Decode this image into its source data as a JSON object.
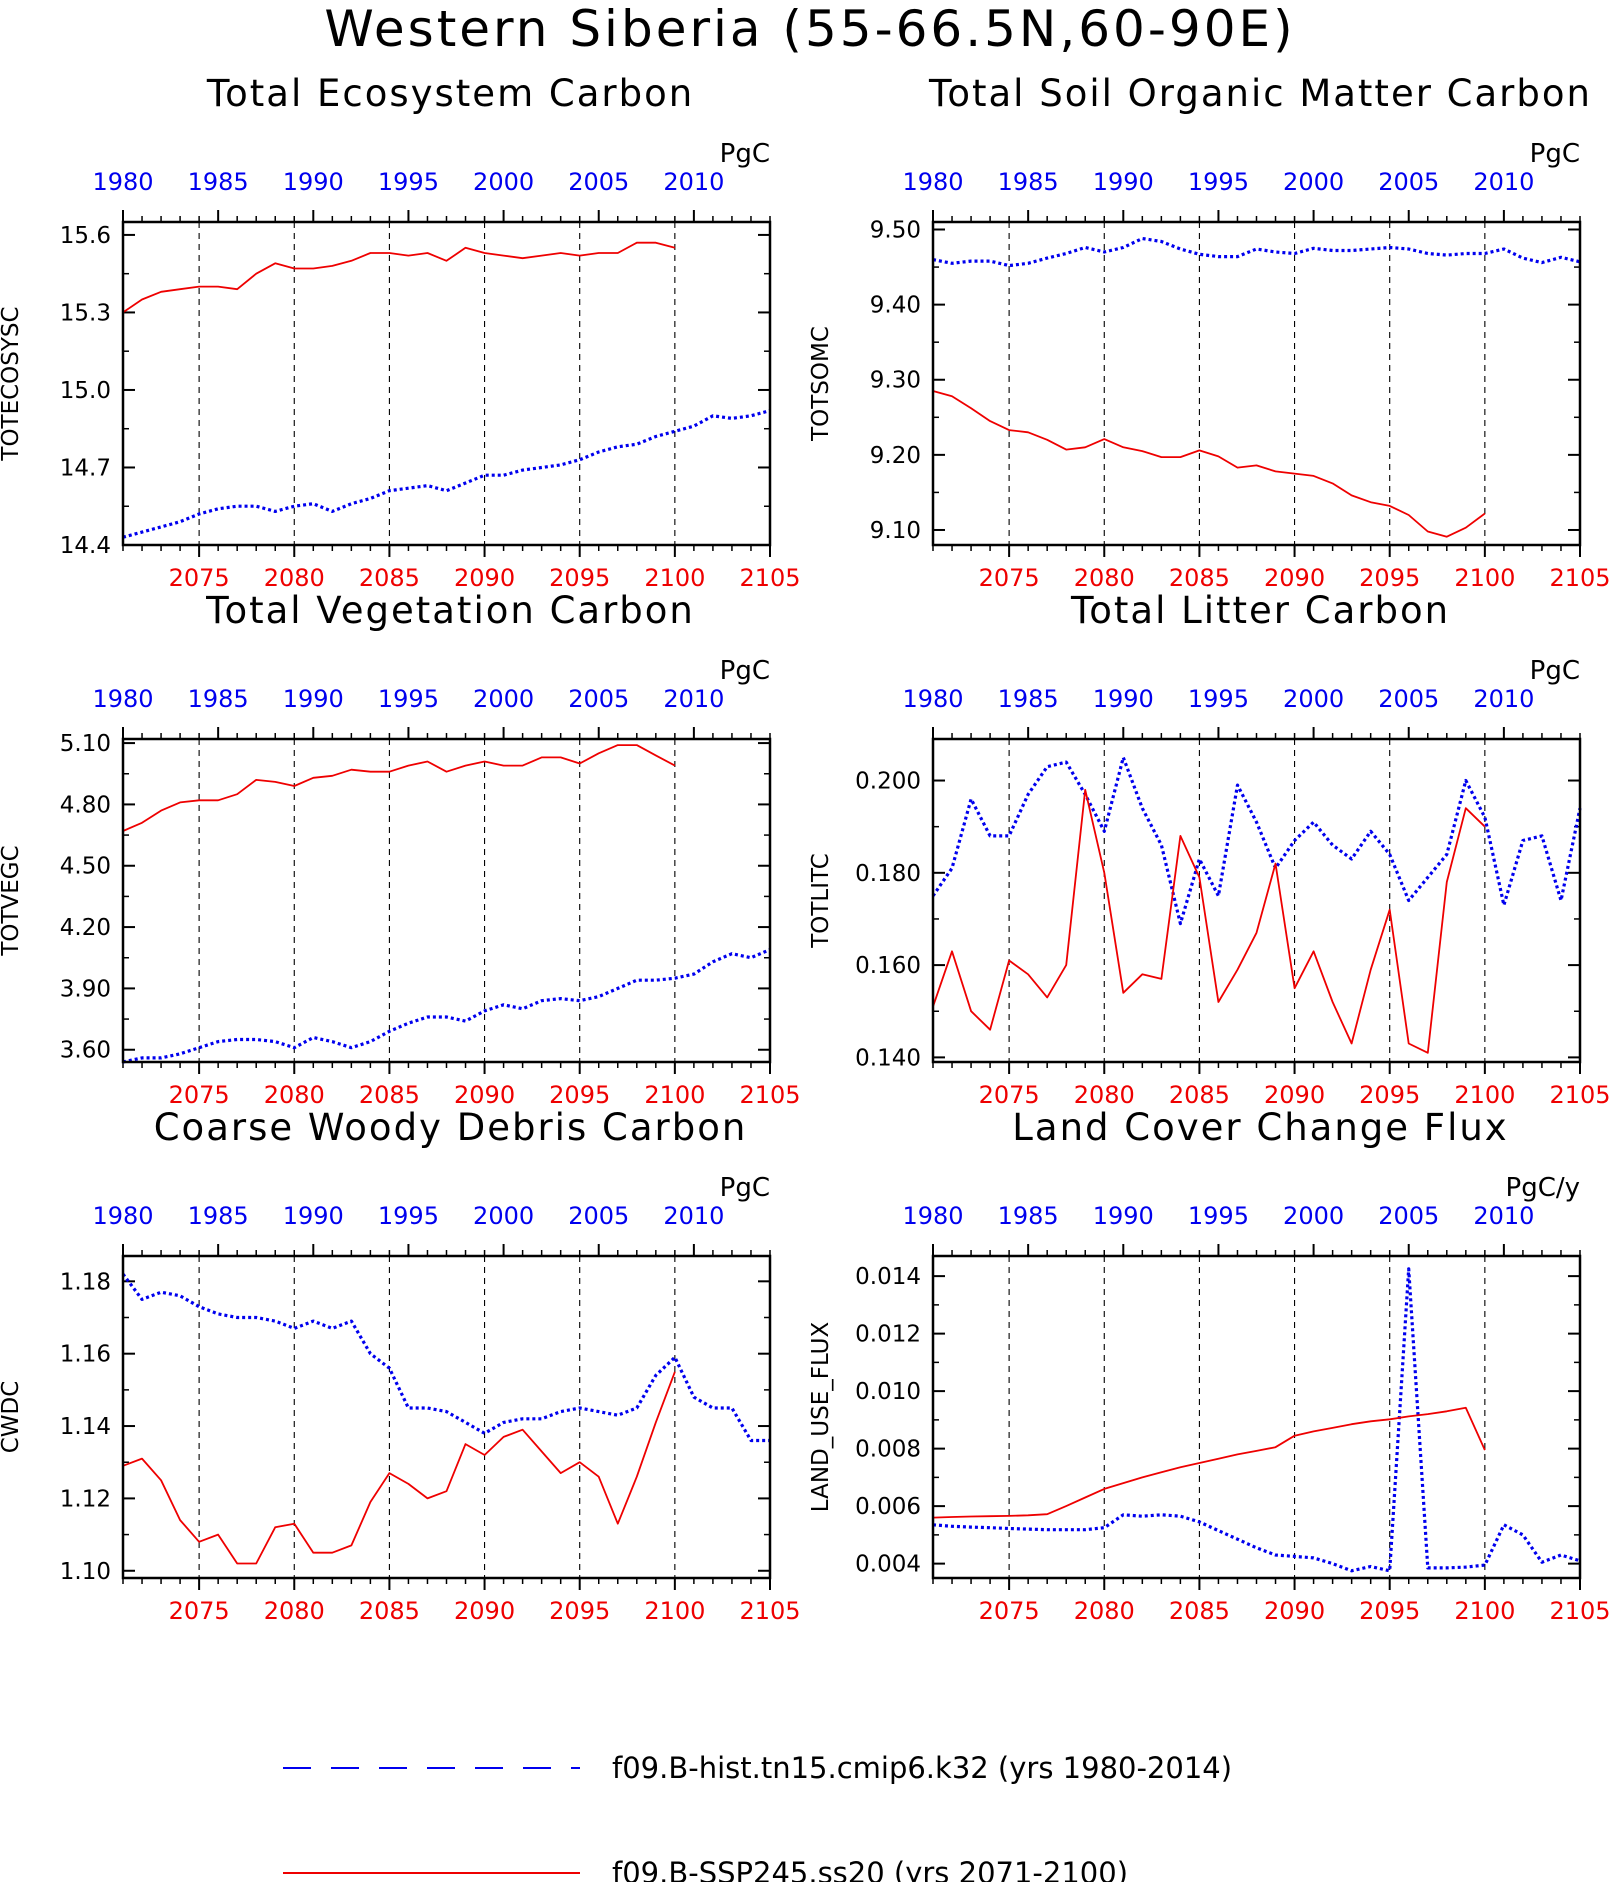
{
  "title": "Western Siberia (55-66.5N,60-90E)",
  "colors": {
    "hist": "#0000ee",
    "ssp": "#ee0000",
    "frame": "#000000",
    "grid": "#000000"
  },
  "legend": [
    {
      "label": "f09.B-hist.tn15.cmip6.k32 (yrs 1980-2014)",
      "color": "#0000ee",
      "style": "dashed"
    },
    {
      "label": "f09.B-SSP245.ss20 (yrs 2071-2100)",
      "color": "#ee0000",
      "style": "solid"
    }
  ],
  "chart_data": [
    {
      "type": "line",
      "title": "Total Ecosystem Carbon",
      "ylabel": "TOTECOSYSC",
      "units": "PgC",
      "ylim": [
        14.4,
        15.65
      ],
      "yticks": [
        "14.4",
        "14.7",
        "15.0",
        "15.3",
        "15.6"
      ],
      "x_top": {
        "range": [
          1980,
          2014
        ],
        "ticks": [
          "1980",
          "1985",
          "1990",
          "1995",
          "2000",
          "2005",
          "2010"
        ]
      },
      "x_bottom": {
        "range": [
          2071,
          2105
        ],
        "ticks": [
          "2075",
          "2080",
          "2085",
          "2090",
          "2095",
          "2100",
          "2105"
        ]
      },
      "series": [
        {
          "name": "f09.B-hist.tn15.cmip6.k32 (yrs 1980-2014)",
          "axis": "top",
          "x_start": 1980,
          "values": [
            14.43,
            14.45,
            14.47,
            14.49,
            14.52,
            14.54,
            14.55,
            14.55,
            14.53,
            14.55,
            14.56,
            14.53,
            14.56,
            14.58,
            14.61,
            14.62,
            14.63,
            14.61,
            14.64,
            14.67,
            14.67,
            14.69,
            14.7,
            14.71,
            14.73,
            14.76,
            14.78,
            14.79,
            14.82,
            14.84,
            14.86,
            14.9,
            14.89,
            14.9,
            14.92
          ]
        },
        {
          "name": "f09.B-SSP245.ss20 (yrs 2071-2100)",
          "axis": "bottom",
          "x_start": 2071,
          "values": [
            15.3,
            15.35,
            15.38,
            15.39,
            15.4,
            15.4,
            15.39,
            15.45,
            15.49,
            15.47,
            15.47,
            15.48,
            15.5,
            15.53,
            15.53,
            15.52,
            15.53,
            15.5,
            15.55,
            15.53,
            15.52,
            15.51,
            15.52,
            15.53,
            15.52,
            15.53,
            15.53,
            15.57,
            15.57,
            15.55
          ]
        }
      ]
    },
    {
      "type": "line",
      "title": "Total Soil Organic Matter Carbon",
      "ylabel": "TOTSOMC",
      "units": "PgC",
      "ylim": [
        9.08,
        9.51
      ],
      "yticks": [
        "9.10",
        "9.20",
        "9.30",
        "9.40",
        "9.50"
      ],
      "x_top": {
        "range": [
          1980,
          2014
        ],
        "ticks": [
          "1980",
          "1985",
          "1990",
          "1995",
          "2000",
          "2005",
          "2010"
        ]
      },
      "x_bottom": {
        "range": [
          2071,
          2105
        ],
        "ticks": [
          "2075",
          "2080",
          "2085",
          "2090",
          "2095",
          "2100",
          "2105"
        ]
      },
      "series": [
        {
          "name": "f09.B-hist.tn15.cmip6.k32 (yrs 1980-2014)",
          "axis": "top",
          "x_start": 1980,
          "values": [
            9.46,
            9.455,
            9.458,
            9.458,
            9.452,
            9.455,
            9.462,
            9.468,
            9.476,
            9.47,
            9.476,
            9.488,
            9.484,
            9.474,
            9.467,
            9.464,
            9.464,
            9.474,
            9.47,
            9.468,
            9.475,
            9.472,
            9.472,
            9.474,
            9.476,
            9.474,
            9.468,
            9.466,
            9.468,
            9.468,
            9.474,
            9.462,
            9.456,
            9.463,
            9.457
          ]
        },
        {
          "name": "f09.B-SSP245.ss20 (yrs 2071-2100)",
          "axis": "bottom",
          "x_start": 2071,
          "values": [
            9.285,
            9.278,
            9.262,
            9.245,
            9.233,
            9.23,
            9.22,
            9.207,
            9.21,
            9.221,
            9.21,
            9.205,
            9.197,
            9.197,
            9.206,
            9.198,
            9.183,
            9.186,
            9.178,
            9.175,
            9.172,
            9.162,
            9.146,
            9.137,
            9.132,
            9.12,
            9.098,
            9.091,
            9.103,
            9.122
          ]
        }
      ]
    },
    {
      "type": "line",
      "title": "Total Vegetation Carbon",
      "ylabel": "TOTVEGC",
      "units": "PgC",
      "ylim": [
        3.54,
        5.12
      ],
      "yticks": [
        "3.60",
        "3.90",
        "4.20",
        "4.50",
        "4.80",
        "5.10"
      ],
      "x_top": {
        "range": [
          1980,
          2014
        ],
        "ticks": [
          "1980",
          "1985",
          "1990",
          "1995",
          "2000",
          "2005",
          "2010"
        ]
      },
      "x_bottom": {
        "range": [
          2071,
          2105
        ],
        "ticks": [
          "2075",
          "2080",
          "2085",
          "2090",
          "2095",
          "2100",
          "2105"
        ]
      },
      "series": [
        {
          "name": "f09.B-hist.tn15.cmip6.k32 (yrs 1980-2014)",
          "axis": "top",
          "x_start": 1980,
          "values": [
            3.54,
            3.56,
            3.56,
            3.58,
            3.61,
            3.64,
            3.65,
            3.65,
            3.64,
            3.61,
            3.66,
            3.64,
            3.61,
            3.64,
            3.69,
            3.73,
            3.76,
            3.76,
            3.74,
            3.79,
            3.82,
            3.8,
            3.84,
            3.85,
            3.84,
            3.86,
            3.9,
            3.94,
            3.94,
            3.95,
            3.97,
            4.03,
            4.07,
            4.05,
            4.09
          ]
        },
        {
          "name": "f09.B-SSP245.ss20 (yrs 2071-2100)",
          "axis": "bottom",
          "x_start": 2071,
          "values": [
            4.67,
            4.71,
            4.77,
            4.81,
            4.82,
            4.82,
            4.85,
            4.92,
            4.91,
            4.89,
            4.93,
            4.94,
            4.97,
            4.96,
            4.96,
            4.99,
            5.01,
            4.96,
            4.99,
            5.01,
            4.99,
            4.99,
            5.03,
            5.03,
            5.0,
            5.05,
            5.09,
            5.09,
            5.04,
            4.99
          ]
        }
      ]
    },
    {
      "type": "line",
      "title": "Total Litter Carbon",
      "ylabel": "TOTLITC",
      "units": "PgC",
      "ylim": [
        0.139,
        0.209
      ],
      "yticks": [
        "0.140",
        "0.160",
        "0.180",
        "0.200"
      ],
      "x_top": {
        "range": [
          1980,
          2014
        ],
        "ticks": [
          "1980",
          "1985",
          "1990",
          "1995",
          "2000",
          "2005",
          "2010"
        ]
      },
      "x_bottom": {
        "range": [
          2071,
          2105
        ],
        "ticks": [
          "2075",
          "2080",
          "2085",
          "2090",
          "2095",
          "2100",
          "2105"
        ]
      },
      "series": [
        {
          "name": "f09.B-hist.tn15.cmip6.k32 (yrs 1980-2014)",
          "axis": "top",
          "x_start": 1980,
          "values": [
            0.175,
            0.181,
            0.196,
            0.188,
            0.188,
            0.197,
            0.203,
            0.204,
            0.197,
            0.189,
            0.205,
            0.194,
            0.186,
            0.169,
            0.183,
            0.175,
            0.199,
            0.191,
            0.181,
            0.187,
            0.191,
            0.186,
            0.183,
            0.189,
            0.184,
            0.174,
            0.179,
            0.184,
            0.2,
            0.192,
            0.173,
            0.187,
            0.188,
            0.174,
            0.194
          ]
        },
        {
          "name": "f09.B-SSP245.ss20 (yrs 2071-2100)",
          "axis": "bottom",
          "x_start": 2071,
          "values": [
            0.151,
            0.163,
            0.15,
            0.146,
            0.161,
            0.158,
            0.153,
            0.16,
            0.198,
            0.18,
            0.154,
            0.158,
            0.157,
            0.188,
            0.179,
            0.152,
            0.159,
            0.167,
            0.182,
            0.155,
            0.163,
            0.152,
            0.143,
            0.159,
            0.172,
            0.143,
            0.141,
            0.178,
            0.194,
            0.19
          ]
        }
      ]
    },
    {
      "type": "line",
      "title": "Coarse Woody Debris Carbon",
      "ylabel": "CWDC",
      "units": "PgC",
      "ylim": [
        1.098,
        1.187
      ],
      "yticks": [
        "1.10",
        "1.12",
        "1.14",
        "1.16",
        "1.18"
      ],
      "x_top": {
        "range": [
          1980,
          2014
        ],
        "ticks": [
          "1980",
          "1985",
          "1990",
          "1995",
          "2000",
          "2005",
          "2010"
        ]
      },
      "x_bottom": {
        "range": [
          2071,
          2105
        ],
        "ticks": [
          "2075",
          "2080",
          "2085",
          "2090",
          "2095",
          "2100",
          "2105"
        ]
      },
      "series": [
        {
          "name": "f09.B-hist.tn15.cmip6.k32 (yrs 1980-2014)",
          "axis": "top",
          "x_start": 1980,
          "values": [
            1.182,
            1.175,
            1.177,
            1.176,
            1.173,
            1.171,
            1.17,
            1.17,
            1.169,
            1.167,
            1.169,
            1.167,
            1.169,
            1.16,
            1.156,
            1.145,
            1.145,
            1.144,
            1.141,
            1.138,
            1.141,
            1.142,
            1.142,
            1.144,
            1.145,
            1.144,
            1.143,
            1.145,
            1.154,
            1.159,
            1.148,
            1.145,
            1.145,
            1.136,
            1.136
          ]
        },
        {
          "name": "f09.B-SSP245.ss20 (yrs 2071-2100)",
          "axis": "bottom",
          "x_start": 2071,
          "values": [
            1.129,
            1.131,
            1.125,
            1.114,
            1.108,
            1.11,
            1.102,
            1.102,
            1.112,
            1.113,
            1.105,
            1.105,
            1.107,
            1.119,
            1.127,
            1.124,
            1.12,
            1.122,
            1.135,
            1.132,
            1.137,
            1.139,
            1.133,
            1.127,
            1.13,
            1.126,
            1.113,
            1.126,
            1.141,
            1.155
          ]
        }
      ]
    },
    {
      "type": "line",
      "title": "Land Cover Change Flux",
      "ylabel": "LAND_USE_FLUX",
      "units": "PgC/y",
      "ylim": [
        0.0035,
        0.0147
      ],
      "yticks": [
        "0.004",
        "0.006",
        "0.008",
        "0.010",
        "0.012",
        "0.014"
      ],
      "x_top": {
        "range": [
          1980,
          2014
        ],
        "ticks": [
          "1980",
          "1985",
          "1990",
          "1995",
          "2000",
          "2005",
          "2010"
        ]
      },
      "x_bottom": {
        "range": [
          2071,
          2105
        ],
        "ticks": [
          "2075",
          "2080",
          "2085",
          "2090",
          "2095",
          "2100",
          "2105"
        ]
      },
      "series": [
        {
          "name": "f09.B-hist.tn15.cmip6.k32 (yrs 1980-2014)",
          "axis": "top",
          "x_start": 1980,
          "values": [
            0.00535,
            0.0053,
            0.00527,
            0.00525,
            0.00522,
            0.0052,
            0.00518,
            0.00518,
            0.00518,
            0.00525,
            0.0057,
            0.00565,
            0.0057,
            0.00565,
            0.00545,
            0.00515,
            0.00485,
            0.00455,
            0.0043,
            0.00425,
            0.0042,
            0.004,
            0.00375,
            0.0039,
            0.00375,
            0.01425,
            0.00385,
            0.00385,
            0.00388,
            0.00395,
            0.00535,
            0.005,
            0.00405,
            0.0043,
            0.0041
          ]
        },
        {
          "name": "f09.B-SSP245.ss20 (yrs 2071-2100)",
          "axis": "bottom",
          "x_start": 2071,
          "values": [
            0.0056,
            0.00562,
            0.00564,
            0.00565,
            0.00566,
            0.00568,
            0.00572,
            0.006,
            0.0063,
            0.0066,
            0.0068,
            0.007,
            0.00718,
            0.00735,
            0.0075,
            0.00765,
            0.0078,
            0.00792,
            0.00805,
            0.00845,
            0.0086,
            0.00872,
            0.00885,
            0.00895,
            0.00902,
            0.00912,
            0.0092,
            0.0093,
            0.00942,
            0.00795
          ]
        }
      ]
    }
  ]
}
